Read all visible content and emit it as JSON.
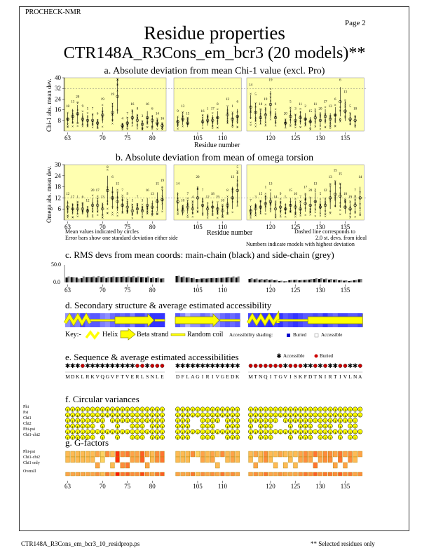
{
  "header": {
    "program": "PROCHECK-NMR",
    "page": "Page  2",
    "title": "Residue properties",
    "subtitle": "CTR148A_R3Cons_em_bcr3 (20 models)**"
  },
  "panels": {
    "a": {
      "title": "a. Absolute deviation from mean Chi-1 value (excl. Pro)",
      "ylabel": "Chi-1 abs. mean dev.",
      "xlabel": "Residue number",
      "yticks": [
        40,
        32,
        24,
        16,
        8
      ],
      "ymax": 40
    },
    "b": {
      "title": "b. Absolute deviation from mean of omega torsion",
      "ylabel": "Omega abs. mean dev.",
      "xlabel": "Residue number",
      "yticks": [
        30,
        24,
        18,
        12,
        6
      ],
      "ymax": 30,
      "note_left_1": "Mean values indicated by circles",
      "note_left_2": "Error bars show one standard deviation either side",
      "note_right_1": "Dashed line corresponds to",
      "note_right_2": "2.0 st. devs. from ideal",
      "note_right_3": "Numbers indicate models with highest deviation"
    },
    "c": {
      "title": "c. RMS devs from mean coords: main-chain (black) and side-chain (grey)",
      "ytick_top": "50.0",
      "ytick_bottom": "0.0",
      "ymax": 50
    },
    "d": {
      "title": "d. Secondary structure & average estimated accessibility",
      "key": "Key:-",
      "helix": "Helix",
      "strand": "Beta strand",
      "coil": "Random coil",
      "shading": "Accessibility shading:",
      "buried": "Buried",
      "accessible": "Accessible"
    },
    "e": {
      "title": "e. Sequence & average estimated accessibilities",
      "accessible": "Accessible",
      "buried": "Buried"
    },
    "f": {
      "title": "f. Circular variances",
      "rows": [
        "Phi",
        "Psi",
        "Chi1",
        "Chi2",
        "Phi-psi",
        "Chi1-chi2"
      ]
    },
    "g": {
      "title": "g. G-factors",
      "rows": [
        "Phi-psi",
        "Chi1-chi2",
        "Chi1 only",
        "Overall"
      ]
    }
  },
  "xticks": [
    63,
    70,
    75,
    80,
    105,
    110,
    120,
    125,
    130,
    135
  ],
  "groups": [
    {
      "start": 63,
      "seq": "MDKLRKVQGVFTVERLSNLE",
      "ss": "HHHHH-----EEEEEEEE--",
      "chi1": [
        9,
        11,
        13,
        9,
        8,
        8,
        6,
        12,
        null,
        14,
        26,
        4,
        6,
        10,
        8,
        5,
        10,
        8,
        6,
        4
      ],
      "chi1_model": [
        18,
        13,
        20,
        9,
        5,
        7,
        6,
        19,
        null,
        19,
        3,
        4,
        7,
        16,
        8,
        3,
        16,
        6,
        14,
        16
      ],
      "omega": [
        7,
        6,
        6,
        6,
        5,
        8,
        8,
        6,
        16,
        12,
        10,
        8,
        7,
        5,
        6,
        5,
        8,
        7,
        10,
        11
      ],
      "omega_model": [
        12,
        17,
        1,
        6,
        12,
        20,
        17,
        13,
        8,
        6,
        15,
        7,
        9,
        5,
        7,
        3,
        16,
        13,
        15,
        19
      ],
      "main": [
        14,
        15,
        14,
        12,
        15,
        15,
        14,
        15,
        13,
        15,
        15,
        16,
        15,
        15,
        14,
        15,
        14,
        12,
        12,
        11
      ],
      "side": [
        17,
        15,
        11,
        17,
        16,
        17,
        18,
        17,
        16,
        17,
        16,
        17,
        17,
        18,
        17,
        16,
        17,
        15,
        14,
        12
      ],
      "acc": [
        0.6,
        0.4,
        0.5,
        0.2,
        0.4,
        0.3,
        0.3,
        0.5,
        0.6,
        0.4,
        0.3,
        0.4,
        0.3,
        0.5,
        0.2,
        0.2,
        0.4,
        0.1,
        0.1,
        0.1
      ],
      "gf": [
        0.3,
        0.3,
        0.3,
        0.3,
        0.3,
        0.3,
        0.4,
        0.2,
        0.5,
        0.3,
        0.9,
        0.5,
        0.6,
        0.4,
        0.4,
        0.7,
        0.4,
        0.3,
        0.5,
        0.6
      ]
    },
    {
      "start": 101,
      "seq": "DFLAGIRIVGEDK",
      "ss": "EEEEEEEEE----",
      "chi1": [
        7,
        9,
        6,
        null,
        null,
        7,
        8,
        8,
        10,
        null,
        12,
        9,
        11
      ],
      "chi1_model": [
        9,
        13,
        15,
        null,
        null,
        16,
        1,
        17,
        8,
        null,
        12,
        1,
        6
      ],
      "omega": [
        10,
        5,
        7,
        6,
        12,
        8,
        6,
        7,
        6,
        5,
        8,
        12,
        16
      ],
      "omega_model": [
        14,
        10,
        7,
        4,
        20,
        7,
        12,
        18,
        19,
        10,
        8,
        13,
        5
      ],
      "main": [
        18,
        15,
        14,
        12,
        10,
        11,
        11,
        12,
        12,
        13,
        14,
        14,
        14
      ],
      "side": [
        19,
        17,
        15,
        13,
        10,
        12,
        12,
        13,
        13,
        14,
        16,
        17,
        17
      ],
      "acc": [
        0.3,
        0.5,
        0.8,
        0.6,
        0.6,
        0.4,
        0.5,
        0.7,
        0.6,
        0.4,
        0.3,
        0.4,
        0.3
      ],
      "gf": [
        0.3,
        0.3,
        0.3,
        0.5,
        0.2,
        0.4,
        0.3,
        0.4,
        0.3,
        0.5,
        0.3,
        0.4,
        0.3
      ]
    },
    {
      "start": 116,
      "seq": "MTNQITGVISKFDTNIRTIVLNA",
      "ss": "HHHHHH------EEEEEEEEEEE",
      "chi1": [
        18,
        14,
        10,
        12,
        20,
        10,
        null,
        6,
        11,
        8,
        10,
        9,
        7,
        10,
        8,
        11,
        9,
        12,
        22,
        15,
        9,
        8,
        null
      ],
      "chi1_model": [
        14,
        5,
        10,
        19,
        19,
        9,
        null,
        20,
        5,
        3,
        11,
        2,
        15,
        11,
        20,
        17,
        13,
        6,
        6,
        13,
        5,
        10,
        null
      ],
      "omega": [
        5,
        6,
        7,
        9,
        10,
        6,
        7,
        6,
        8,
        7,
        6,
        9,
        8,
        10,
        7,
        8,
        12,
        14,
        13,
        7,
        6,
        8,
        12
      ],
      "omega_model": [
        7,
        3,
        15,
        1,
        13,
        14,
        9,
        5,
        15,
        10,
        7,
        17,
        20,
        13,
        5,
        12,
        13,
        15,
        15,
        10,
        19,
        7,
        14
      ],
      "main": [
        10,
        9,
        8,
        8,
        7,
        6,
        4,
        3,
        6,
        7,
        6,
        7,
        8,
        10,
        10,
        9,
        8,
        8,
        6,
        5,
        4,
        6,
        9
      ],
      "side": [
        12,
        11,
        10,
        10,
        9,
        7,
        5,
        4,
        7,
        8,
        7,
        8,
        10,
        12,
        12,
        11,
        10,
        9,
        7,
        6,
        5,
        7,
        10
      ],
      "acc": [
        0.2,
        0.2,
        0.1,
        0.1,
        0.05,
        0.2,
        0.1,
        0.3,
        0.2,
        0.1,
        0.2,
        0.3,
        0.3,
        0.2,
        0.3,
        0.1,
        0.3,
        0.4,
        0.2,
        0.2,
        0.3,
        0.3,
        0.2
      ],
      "gf": [
        0.3,
        0.4,
        0.3,
        0.5,
        0.3,
        0.3,
        0.4,
        0.3,
        0.3,
        0.3,
        0.4,
        0.5,
        0.4,
        0.6,
        0.4,
        0.5,
        0.5,
        0.4,
        0.6,
        0.4,
        0.5,
        0.3,
        0.4
      ]
    }
  ],
  "footer": {
    "left": "CTR148A_R3Cons_em_bcr3_10_residprop.ps",
    "right": "** Selected residues only"
  }
}
